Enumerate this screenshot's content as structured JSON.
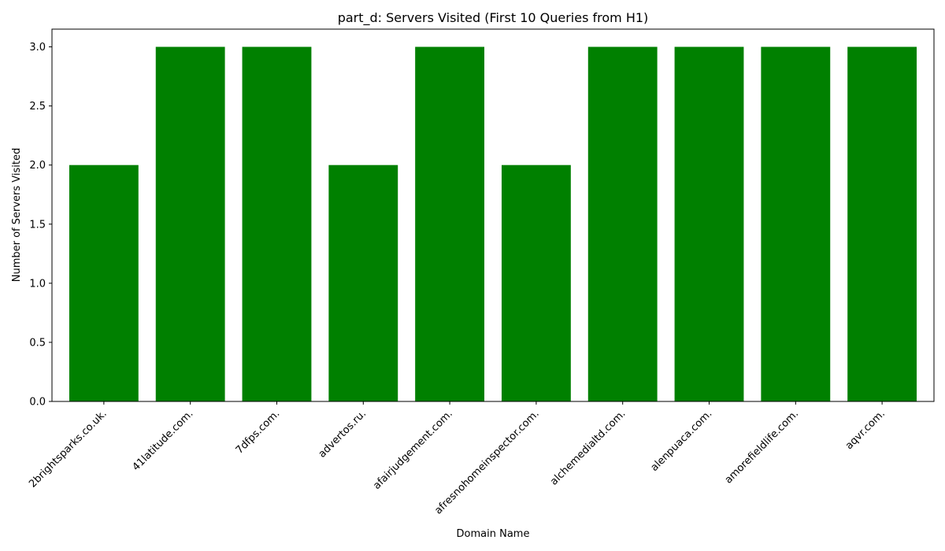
{
  "chart_data": {
    "type": "bar",
    "title": "part_d: Servers Visited (First 10 Queries from H1)",
    "xlabel": "Domain Name",
    "ylabel": "Number of Servers Visited",
    "categories": [
      "2brightsparks.co.uk.",
      "41latitude.com.",
      "7dfps.com.",
      "advertos.ru.",
      "afairjudgement.com.",
      "afresnohomeinspector.com.",
      "alchemedialtd.com.",
      "alenpuaca.com.",
      "amorefieldlife.com.",
      "aqvr.com."
    ],
    "values": [
      2,
      3,
      3,
      2,
      3,
      2,
      3,
      3,
      3,
      3
    ],
    "ylim": [
      0,
      3.15
    ],
    "yticks": [
      "0.0",
      "0.5",
      "1.0",
      "1.5",
      "2.0",
      "2.5",
      "3.0"
    ],
    "bar_color": "#008000",
    "grid": false,
    "legend": "none"
  }
}
